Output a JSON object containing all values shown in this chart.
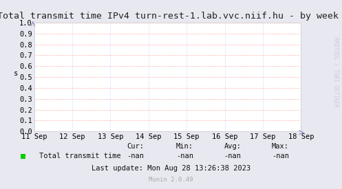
{
  "title": "Total transmit time IPv4 turn-rest-1.lab.vvc.niif.hu - by week",
  "ylabel": "s",
  "background_color": "#e8e8f0",
  "plot_bg_color": "#ffffff",
  "grid_color": "#ff9999",
  "grid_color2": "#ccccff",
  "ylim": [
    0.0,
    1.0
  ],
  "yticks": [
    0.0,
    0.1,
    0.2,
    0.3,
    0.4,
    0.5,
    0.6,
    0.7,
    0.8,
    0.9,
    1.0
  ],
  "xtick_labels": [
    "11 Sep",
    "12 Sep",
    "13 Sep",
    "14 Sep",
    "15 Sep",
    "16 Sep",
    "17 Sep",
    "18 Sep"
  ],
  "legend_label": "Total transmit time",
  "legend_color": "#00cc00",
  "cur_val": "-nan",
  "min_val": "-nan",
  "avg_val": "-nan",
  "max_val": "-nan",
  "last_update": "Last update: Mon Aug 28 13:26:38 2023",
  "munin_version": "Munin 2.0.49",
  "rrdtool_text": "RRDTOOL / TOBI OETIKER",
  "title_fontsize": 9.5,
  "axis_fontsize": 7.5,
  "legend_fontsize": 7.5,
  "footer_fontsize": 7.5,
  "watermark_fontsize": 5.5
}
